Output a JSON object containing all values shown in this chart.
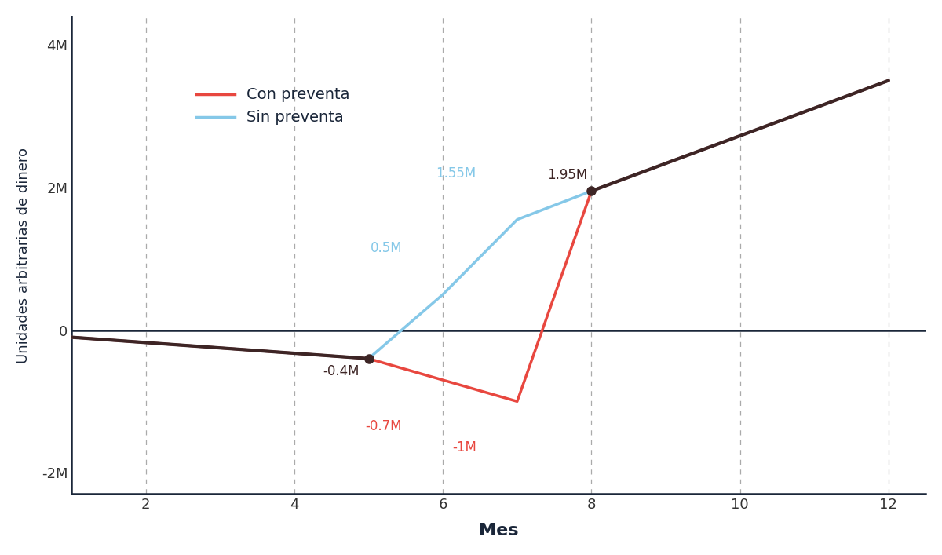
{
  "con_preventa_x": [
    1,
    5,
    6,
    7,
    8,
    12
  ],
  "con_preventa_y": [
    -0.1,
    -0.4,
    -0.7,
    -1.0,
    1.95,
    3.5
  ],
  "sin_preventa_x": [
    1,
    5,
    6,
    7,
    8,
    12
  ],
  "sin_preventa_y": [
    -0.1,
    -0.4,
    0.5,
    1.55,
    1.95,
    3.5
  ],
  "con_preventa_color": "#E8473F",
  "sin_preventa_color": "#85C8E8",
  "merge_color": "#3D2525",
  "zero_line_color": "#1a2639",
  "background_color": "#ffffff",
  "xlabel": "Mes",
  "ylabel": "Unidades arbitrarias de dinero",
  "xlim": [
    1,
    12.5
  ],
  "ylim": [
    -2.3,
    4.4
  ],
  "yticks": [
    -2,
    0,
    2,
    4
  ],
  "ytick_labels": [
    "-2M",
    "0",
    "2M",
    "4M"
  ],
  "xticks": [
    2,
    4,
    6,
    8,
    10,
    12
  ],
  "legend_con": "Con preventa",
  "legend_sin": "Sin preventa",
  "line_width": 2.5,
  "merge_marker_color": "#3D2525",
  "merge_marker_size": 8
}
